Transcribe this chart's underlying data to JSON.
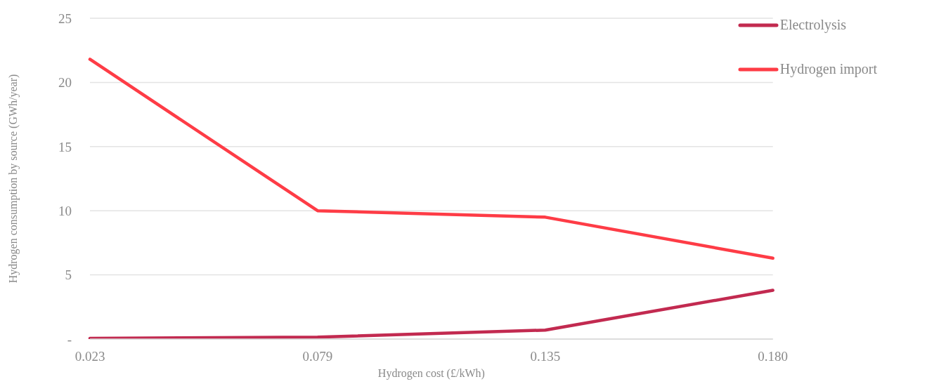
{
  "chart_data": {
    "type": "line",
    "xlabel": "Hydrogen cost (£/kWh)",
    "ylabel": "Hydrogen consumption by source  (GWh/year)",
    "categories": [
      "0.023",
      "0.079",
      "0.135",
      "0.180"
    ],
    "series": [
      {
        "name": "Electrolysis",
        "color": "#c22a50",
        "values": [
          0.05,
          0.15,
          0.7,
          3.8
        ]
      },
      {
        "name": "Hydrogen import",
        "color": "#fe3c46",
        "values": [
          21.8,
          10.0,
          9.5,
          6.3
        ]
      }
    ],
    "ylim": [
      0,
      25
    ],
    "yticks": [
      {
        "value": 0,
        "label": "-"
      },
      5,
      10,
      15,
      20,
      25
    ],
    "grid": "y",
    "legend": "top right",
    "marker": "none",
    "line_style": "solid"
  }
}
